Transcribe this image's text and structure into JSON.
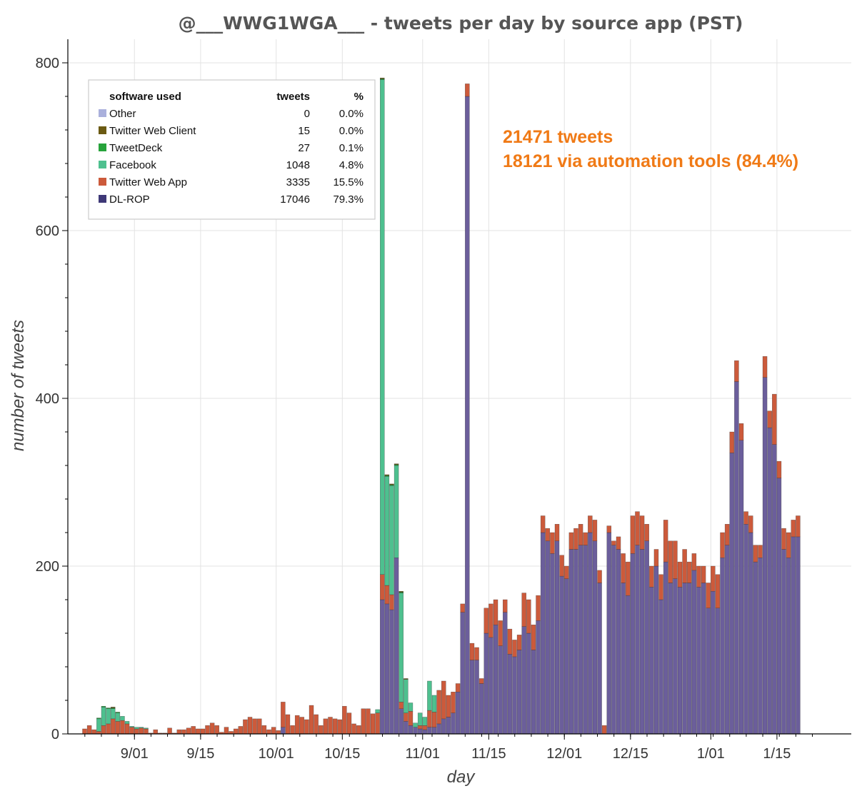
{
  "chart_data": {
    "type": "bar",
    "stacked": true,
    "title": "@___WWG1WGA___ - tweets per day by source app (PST)",
    "xlabel": "day",
    "ylabel": "number of tweets",
    "ylim": [
      0,
      800
    ],
    "y_ticks": [
      0,
      200,
      400,
      600,
      800
    ],
    "x_ticks": [
      {
        "label": "9/01",
        "index": 11
      },
      {
        "label": "9/15",
        "index": 25
      },
      {
        "label": "10/01",
        "index": 41
      },
      {
        "label": "10/15",
        "index": 55
      },
      {
        "label": "11/01",
        "index": 72
      },
      {
        "label": "11/15",
        "index": 86
      },
      {
        "label": "12/01",
        "index": 102
      },
      {
        "label": "12/15",
        "index": 116
      },
      {
        "label": "1/01",
        "index": 133
      },
      {
        "label": "1/15",
        "index": 147
      }
    ],
    "x_range": [
      "2020-08-21",
      "2021-01-19"
    ],
    "grid": true,
    "colors": {
      "Other": "#aab0dc",
      "Twitter Web Client": "#6b5a12",
      "TweetDeck": "#27a33b",
      "Facebook": "#4ec08f",
      "Twitter Web App": "#cc5a3b",
      "DL-ROP": "#6b5e9b"
    },
    "series": [
      {
        "name": "DL-ROP",
        "values": [
          0,
          0,
          0,
          0,
          0,
          0,
          0,
          0,
          0,
          0,
          0,
          0,
          0,
          0,
          0,
          0,
          0,
          0,
          0,
          0,
          0,
          0,
          0,
          0,
          0,
          0,
          0,
          0,
          0,
          0,
          0,
          0,
          0,
          0,
          0,
          0,
          0,
          0,
          0,
          0,
          0,
          0,
          8,
          0,
          0,
          0,
          0,
          0,
          0,
          0,
          0,
          0,
          0,
          0,
          0,
          0,
          0,
          0,
          0,
          0,
          0,
          0,
          0,
          160,
          155,
          148,
          210,
          30,
          15,
          10,
          8,
          6,
          5,
          8,
          8,
          12,
          18,
          20,
          25,
          50,
          145,
          760,
          88,
          88,
          60,
          120,
          115,
          130,
          105,
          145,
          95,
          92,
          100,
          128,
          120,
          100,
          135,
          240,
          230,
          215,
          230,
          188,
          185,
          220,
          220,
          225,
          225,
          240,
          230,
          180,
          0,
          240,
          225,
          220,
          180,
          165,
          215,
          225,
          220,
          230,
          175,
          200,
          160,
          205,
          180,
          185,
          175,
          180,
          180,
          195,
          175,
          180,
          150,
          170,
          150,
          210,
          225,
          335,
          420,
          350,
          250,
          240,
          205,
          210,
          425,
          365,
          345,
          305,
          220,
          210,
          235,
          235
        ]
      },
      {
        "name": "Twitter Web App",
        "values": [
          6,
          10,
          5,
          3,
          10,
          12,
          18,
          15,
          16,
          12,
          8,
          6,
          7,
          6,
          1,
          5,
          1,
          1,
          7,
          1,
          5,
          5,
          7,
          9,
          6,
          6,
          10,
          13,
          10,
          2,
          8,
          3,
          6,
          9,
          17,
          20,
          18,
          18,
          10,
          5,
          8,
          4,
          30,
          23,
          10,
          22,
          20,
          17,
          34,
          23,
          10,
          18,
          20,
          18,
          17,
          33,
          25,
          12,
          10,
          30,
          30,
          24,
          25,
          30,
          22,
          18,
          0,
          8,
          10,
          17,
          0,
          4,
          5,
          20,
          18,
          40,
          45,
          26,
          25,
          10,
          10,
          15,
          20,
          15,
          6,
          30,
          40,
          30,
          30,
          15,
          30,
          20,
          18,
          40,
          40,
          30,
          30,
          20,
          15,
          25,
          20,
          25,
          15,
          20,
          25,
          25,
          15,
          20,
          25,
          15,
          10,
          8,
          5,
          15,
          35,
          40,
          45,
          40,
          40,
          20,
          25,
          20,
          30,
          50,
          50,
          45,
          30,
          40,
          25,
          20,
          25,
          20,
          30,
          30,
          40,
          30,
          25,
          25,
          25,
          20,
          15,
          20,
          20,
          15,
          25,
          20,
          60,
          20,
          25,
          30,
          20,
          25,
          25,
          40,
          30,
          5,
          20,
          25,
          20,
          15
        ]
      },
      {
        "name": "Facebook",
        "values": [
          0,
          0,
          0,
          15,
          22,
          18,
          12,
          10,
          5,
          3,
          1,
          2,
          1,
          1,
          0,
          0,
          0,
          0,
          0,
          0,
          0,
          0,
          0,
          0,
          0,
          0,
          0,
          0,
          0,
          0,
          0,
          0,
          0,
          0,
          0,
          0,
          0,
          0,
          0,
          0,
          0,
          0,
          0,
          0,
          0,
          0,
          0,
          0,
          0,
          0,
          0,
          0,
          0,
          0,
          0,
          0,
          0,
          0,
          0,
          0,
          0,
          0,
          4,
          590,
          130,
          130,
          110,
          130,
          40,
          10,
          5,
          15,
          10,
          35,
          20,
          0,
          0,
          0,
          0,
          0,
          0,
          0,
          0,
          0,
          0,
          0,
          0,
          0,
          0,
          0,
          0,
          0,
          0,
          0,
          0,
          0,
          0,
          0,
          0,
          0,
          0,
          0,
          0,
          0,
          0,
          0,
          0,
          0,
          0,
          0,
          0,
          0,
          0,
          0,
          0,
          0,
          0,
          0,
          0,
          0,
          0,
          0,
          0,
          0,
          0,
          0,
          0,
          0,
          0,
          0,
          0,
          0,
          0,
          0,
          0,
          0,
          0,
          0,
          0,
          0,
          0,
          0,
          0,
          0,
          0,
          0,
          0,
          0,
          0,
          0,
          0,
          0,
          0,
          0,
          0,
          0,
          0,
          0
        ]
      },
      {
        "name": "TweetDeck",
        "values": [
          0,
          0,
          0,
          1,
          1,
          1,
          1,
          1,
          0,
          0,
          0,
          0,
          0,
          0,
          0,
          0,
          0,
          0,
          0,
          0,
          0,
          0,
          0,
          0,
          0,
          0,
          0,
          0,
          0,
          0,
          0,
          0,
          0,
          0,
          0,
          0,
          0,
          0,
          0,
          0,
          0,
          0,
          0,
          0,
          0,
          0,
          0,
          0,
          0,
          0,
          0,
          0,
          0,
          0,
          0,
          0,
          0,
          0,
          0,
          0,
          0,
          0,
          0,
          1,
          1,
          1,
          1,
          1,
          0,
          0,
          0,
          0,
          0,
          0,
          0,
          0,
          0,
          0,
          0,
          0,
          0,
          0,
          0,
          0,
          0,
          0,
          0,
          0,
          0,
          0,
          0,
          0,
          0,
          0,
          0,
          0,
          0,
          0,
          0,
          0,
          0,
          0,
          0,
          0,
          0,
          0,
          0,
          0,
          0,
          0,
          0,
          0,
          0,
          0,
          0,
          0,
          0,
          0,
          0,
          0,
          0,
          0,
          0,
          0,
          0,
          0,
          0,
          0,
          0,
          0,
          0,
          0,
          0,
          0,
          0,
          0,
          0,
          0,
          0,
          0,
          0,
          0,
          0,
          0,
          0,
          0,
          0,
          0,
          0,
          0,
          0,
          0,
          0,
          0,
          0,
          0,
          0,
          0,
          0,
          0
        ]
      },
      {
        "name": "Twitter Web Client",
        "values": [
          0,
          0,
          0,
          0,
          0,
          0,
          1,
          0,
          0,
          0,
          0,
          0,
          0,
          0,
          0,
          0,
          0,
          0,
          0,
          0,
          0,
          0,
          0,
          0,
          0,
          0,
          0,
          0,
          0,
          0,
          0,
          0,
          0,
          0,
          0,
          0,
          0,
          0,
          0,
          0,
          0,
          0,
          0,
          0,
          0,
          0,
          0,
          0,
          0,
          0,
          0,
          0,
          0,
          0,
          0,
          0,
          0,
          0,
          0,
          0,
          0,
          0,
          0,
          1,
          1,
          1,
          1,
          1,
          1,
          0,
          0,
          0,
          0,
          0,
          0,
          0,
          0,
          0,
          0,
          0,
          0,
          0,
          0,
          0,
          0,
          0,
          0,
          0,
          0,
          0,
          0,
          0,
          0,
          0,
          0,
          0,
          0,
          0,
          0,
          0,
          0,
          0,
          0,
          0,
          0,
          0,
          0,
          0,
          0,
          0,
          0,
          0,
          0,
          0,
          0,
          0,
          0,
          0,
          0,
          0,
          0,
          0,
          0,
          0,
          0,
          0,
          0,
          0,
          0,
          0,
          0,
          0,
          0,
          0,
          0,
          0,
          0,
          0,
          0,
          0,
          0,
          0,
          0,
          0,
          0,
          0,
          0,
          0,
          0,
          0,
          0,
          0,
          0,
          0,
          0,
          0,
          0,
          0,
          0,
          0
        ]
      }
    ],
    "legend": {
      "placement": "top-left",
      "headers": {
        "software": "software used",
        "tweets": "tweets",
        "pct": "%"
      },
      "rows": [
        {
          "name": "Other",
          "tweets": "0",
          "pct": "0.0%",
          "color": "#aab0dc"
        },
        {
          "name": "Twitter Web Client",
          "tweets": "15",
          "pct": "0.0%",
          "color": "#6b5a12"
        },
        {
          "name": "TweetDeck",
          "tweets": "27",
          "pct": "0.1%",
          "color": "#27a33b"
        },
        {
          "name": "Facebook",
          "tweets": "1048",
          "pct": "4.8%",
          "color": "#4ec08f"
        },
        {
          "name": "Twitter Web App",
          "tweets": "3335",
          "pct": "15.5%",
          "color": "#cc5a3b"
        },
        {
          "name": "DL-ROP",
          "tweets": "17046",
          "pct": "79.3%",
          "color": "#3e3877"
        }
      ]
    },
    "annotations": [
      {
        "text": "21471 tweets",
        "color": "#f07a16"
      },
      {
        "text": "18121 via automation tools (84.4%)",
        "color": "#f07a16"
      }
    ]
  }
}
